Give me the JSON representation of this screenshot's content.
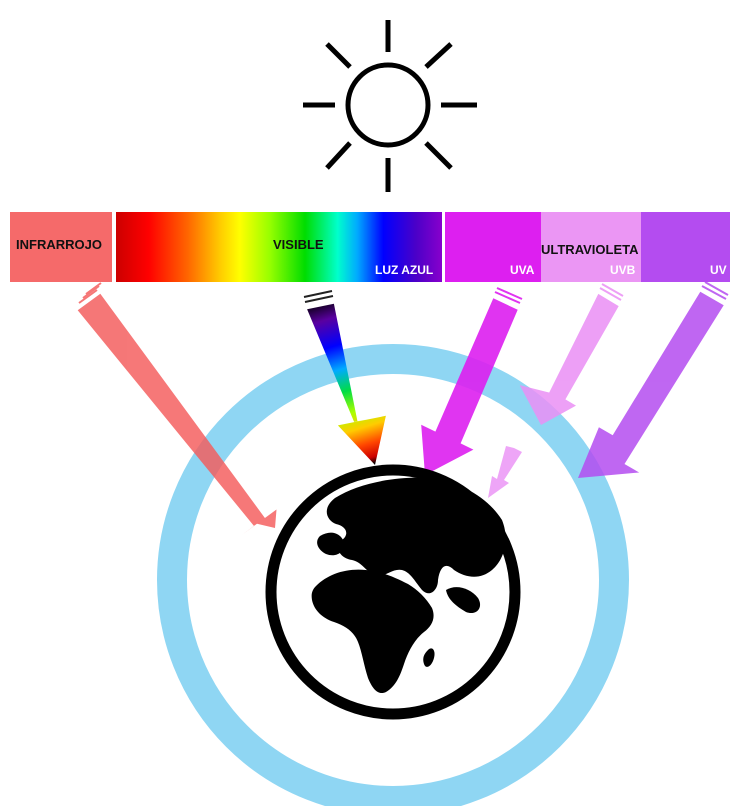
{
  "spectrum": {
    "infrared_label": "INFRARROJO",
    "visible_label": "VISIBLE",
    "blue_light_label": "LUZ AZUL",
    "ultraviolet_label": "ULTRAVIOLETA",
    "uva_label": "UVA",
    "uvb_label": "UVB",
    "uvc_label": "UV"
  },
  "icons": {
    "sun": "sun-icon",
    "earth": "globe-icon",
    "atmosphere": "atmosphere-ring"
  },
  "colors": {
    "infrared": "#f56a6a",
    "uva": "#dd1ff0",
    "uvb": "#eb96f4",
    "uvc": "#b44cf0",
    "atmosphere": "#8fd6f3",
    "earth": "#000000"
  }
}
